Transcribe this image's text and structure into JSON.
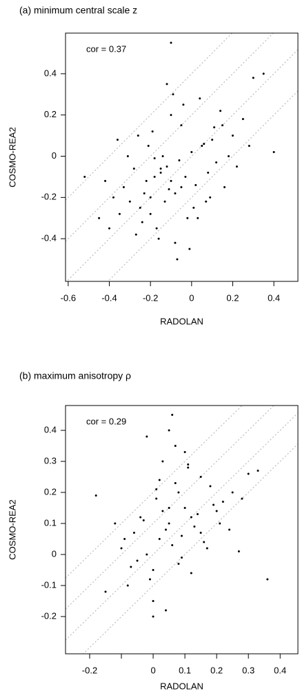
{
  "chart_data": [
    {
      "type": "scatter",
      "title": "(a) minimum central scale z",
      "x_label": "RADOLAN",
      "y_label": "COSMO-REA2",
      "annotation": "cor = 0.37",
      "color": "#000000",
      "xlim": [
        -0.613,
        0.517
      ],
      "ylim": [
        -0.607,
        0.597
      ],
      "xticks": [
        -0.6,
        -0.4,
        -0.2,
        0.0,
        0.2,
        0.4
      ],
      "yticks": [
        -0.4,
        -0.2,
        0.0,
        0.2,
        0.4
      ],
      "reference_lines": [
        0.4,
        0.2,
        0,
        -0.2
      ],
      "x": [
        -0.1,
        -0.15,
        -0.05,
        -0.2,
        0.0,
        -0.12,
        -0.08,
        -0.25,
        0.05,
        -0.18,
        -0.3,
        0.1,
        -0.02,
        -0.22,
        -0.14,
        0.15,
        -0.35,
        -0.06,
        0.02,
        -0.1,
        -0.4,
        0.2,
        -0.28,
        -0.04,
        0.08,
        -0.16,
        -0.11,
        -0.19,
        0.12,
        -0.24,
        -0.09,
        0.25,
        -0.33,
        -0.01,
        -0.13,
        0.06,
        -0.21,
        0.3,
        -0.45,
        -0.07,
        0.18,
        -0.17,
        -0.26,
        0.04,
        -0.03,
        0.4,
        -0.52,
        0.22,
        -0.38,
        -0.12,
        0.01,
        -0.23,
        0.14,
        -0.31,
        -0.08,
        0.09,
        -0.15,
        0.35,
        -0.42,
        0.28,
        -0.05,
        -0.2,
        0.03,
        -0.27,
        0.11,
        -0.1,
        0.16,
        -0.36,
        0.07,
        -0.18
      ],
      "y": [
        -0.12,
        -0.08,
        -0.15,
        -0.2,
        0.02,
        -0.05,
        -0.18,
        -0.25,
        0.05,
        -0.1,
        -0.22,
        0.08,
        -0.3,
        -0.12,
        0.0,
        0.15,
        -0.28,
        -0.02,
        -0.14,
        0.2,
        -0.35,
        0.1,
        -0.06,
        0.25,
        -0.08,
        -0.4,
        -0.16,
        0.12,
        -0.03,
        -0.32,
        0.3,
        0.18,
        -0.15,
        -0.45,
        -0.22,
        0.06,
        0.05,
        0.38,
        -0.3,
        -0.5,
        0.0,
        -0.35,
        0.1,
        0.28,
        -0.1,
        0.02,
        -0.1,
        -0.05,
        -0.2,
        0.35,
        -0.25,
        -0.18,
        0.22,
        0.0,
        -0.42,
        -0.2,
        -0.06,
        0.4,
        -0.12,
        0.05,
        0.15,
        -0.28,
        -0.3,
        -0.38,
        0.14,
        0.55,
        -0.15,
        0.08,
        -0.22,
        -0.01
      ]
    },
    {
      "type": "scatter",
      "title": "(b) maximum anisotropy ρ",
      "x_label": "RADOLAN",
      "y_label": "COSMO-REA2",
      "annotation": "cor = 0.29",
      "color": "#000000",
      "xlim": [
        -0.276,
        0.456
      ],
      "ylim": [
        -0.32,
        0.48
      ],
      "xticks": [
        -0.2,
        {
          "value": -0.1,
          "label": null
        },
        0.0,
        0.1,
        0.2,
        0.3,
        0.4
      ],
      "yticks": [
        -0.2,
        -0.1,
        0.0,
        0.1,
        0.2,
        0.3,
        0.4
      ],
      "reference_lines": [
        0.2,
        0.1,
        0,
        -0.1
      ],
      "x": [
        0.05,
        0.02,
        0.1,
        -0.02,
        0.08,
        0.0,
        0.12,
        0.04,
        -0.05,
        0.15,
        0.06,
        0.01,
        0.18,
        -0.08,
        0.09,
        0.03,
        0.2,
        -0.01,
        0.07,
        0.13,
        -0.1,
        0.25,
        0.11,
        -0.04,
        0.16,
        0.0,
        0.22,
        -0.12,
        0.05,
        0.3,
        0.08,
        -0.06,
        0.14,
        0.02,
        0.27,
        -0.15,
        0.1,
        0.04,
        0.19,
        -0.03,
        0.33,
        0.06,
        -0.09,
        0.12,
        0.01,
        0.24,
        -0.18,
        0.09,
        0.17,
        0.03,
        0.07,
        -0.07,
        0.21,
        0.0,
        0.11,
        0.28,
        -0.02,
        0.15,
        0.05,
        0.36
      ],
      "y": [
        0.1,
        0.05,
        0.15,
        0.0,
        0.2,
        -0.05,
        0.12,
        0.08,
        -0.02,
        0.25,
        0.03,
        0.18,
        0.22,
        -0.1,
        0.06,
        0.3,
        0.14,
        -0.08,
        0.35,
        0.09,
        0.02,
        0.2,
        0.28,
        0.12,
        0.04,
        -0.15,
        0.17,
        0.1,
        0.4,
        0.26,
        -0.03,
        0.07,
        0.13,
        0.24,
        0.01,
        -0.12,
        0.33,
        -0.18,
        0.16,
        0.11,
        0.27,
        0.45,
        0.05,
        -0.06,
        0.21,
        0.08,
        0.19,
        -0.01,
        0.02,
        0.14,
        0.23,
        -0.04,
        0.1,
        -0.2,
        0.29,
        0.18,
        0.38,
        0.07,
        0.15,
        -0.08
      ]
    }
  ]
}
